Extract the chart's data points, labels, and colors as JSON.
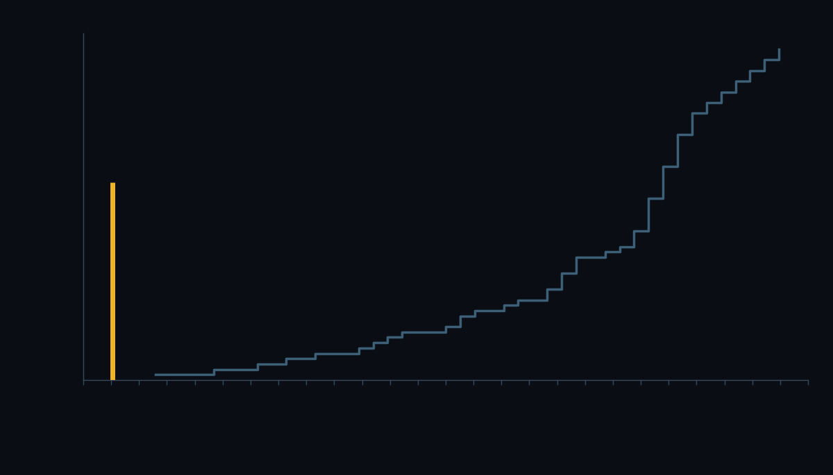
{
  "background_color": "#0a0e14",
  "plot_bg_color": "#0a0e14",
  "axis_color": "#3a4a5c",
  "yellow_line_color": "#f0b429",
  "teal_line_color": "#3d5f78",
  "nice_ta_x": 2.0,
  "nice_ta_ymax": 0.57,
  "cumulative_x": [
    5,
    6,
    7,
    8,
    9,
    10,
    11,
    12,
    13,
    14,
    15,
    16,
    17,
    18,
    19,
    20,
    21,
    22,
    23,
    24,
    25,
    26,
    27,
    28,
    29,
    30,
    31,
    32,
    33,
    34,
    35,
    36,
    37,
    38,
    39,
    40,
    41,
    42,
    43,
    44,
    45,
    46,
    47,
    48
  ],
  "cumulative_y": [
    1,
    1,
    1,
    1,
    2,
    2,
    2,
    3,
    3,
    4,
    4,
    5,
    5,
    5,
    6,
    7,
    8,
    9,
    9,
    9,
    10,
    12,
    13,
    13,
    14,
    15,
    15,
    17,
    20,
    23,
    23,
    24,
    25,
    28,
    34,
    40,
    46,
    50,
    52,
    54,
    56,
    58,
    60,
    62
  ],
  "ylim": [
    0,
    65
  ],
  "xlim": [
    0,
    50
  ],
  "n_xticks": 26,
  "line_width": 2.5,
  "yellow_bar_width": 5,
  "yellow_bar_height": 0.57
}
